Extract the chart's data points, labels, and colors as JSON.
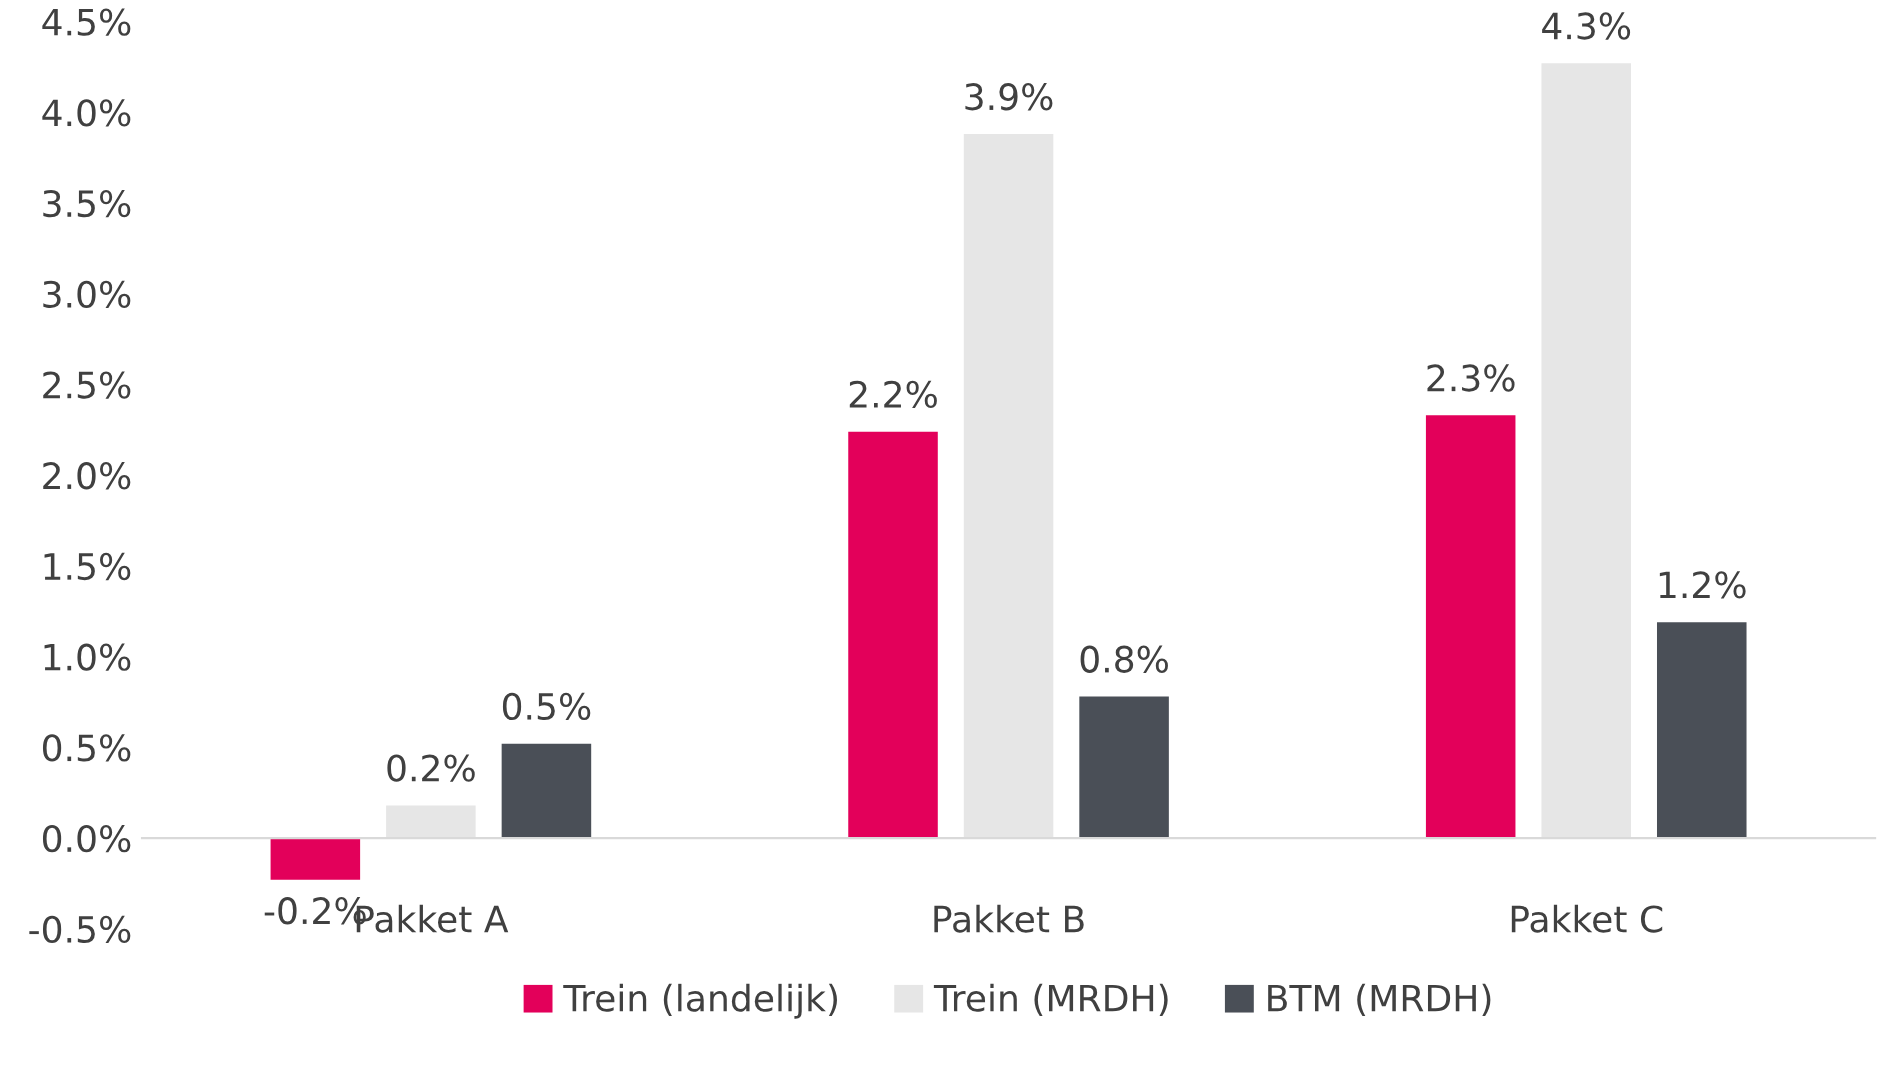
{
  "chart_data": {
    "type": "bar",
    "categories": [
      "Pakket A",
      "Pakket B",
      "Pakket C"
    ],
    "series": [
      {
        "name": "Trein (landelijk)",
        "color": "#e3005a",
        "values": [
          -0.23,
          2.24,
          2.33
        ],
        "value_labels": [
          "-0.2%",
          "2.2%",
          "2.3%"
        ]
      },
      {
        "name": "Trein (MRDH)",
        "color": "#e6e6e6",
        "values": [
          0.18,
          3.88,
          4.27
        ],
        "value_labels": [
          "0.2%",
          "3.9%",
          "4.3%"
        ]
      },
      {
        "name": "BTM (MRDH)",
        "color": "#4a4f57",
        "values": [
          0.52,
          0.78,
          1.19
        ],
        "value_labels": [
          "0.5%",
          "0.8%",
          "1.2%"
        ]
      }
    ],
    "ylim": [
      -0.5,
      4.5
    ],
    "yticks": [
      {
        "value": -0.5,
        "label": "-0.5%"
      },
      {
        "value": 0,
        "label": "0.0%"
      },
      {
        "value": 0.5,
        "label": "0.5%"
      },
      {
        "value": 1,
        "label": "1.0%"
      },
      {
        "value": 1.5,
        "label": "1.5%"
      },
      {
        "value": 2,
        "label": "2.0%"
      },
      {
        "value": 2.5,
        "label": "2.5%"
      },
      {
        "value": 3,
        "label": "3.0%"
      },
      {
        "value": 3.5,
        "label": "3.5%"
      },
      {
        "value": 4,
        "label": "4.0%"
      },
      {
        "value": 4.5,
        "label": "4.5%"
      }
    ],
    "grid": false,
    "legend": "bottom"
  }
}
